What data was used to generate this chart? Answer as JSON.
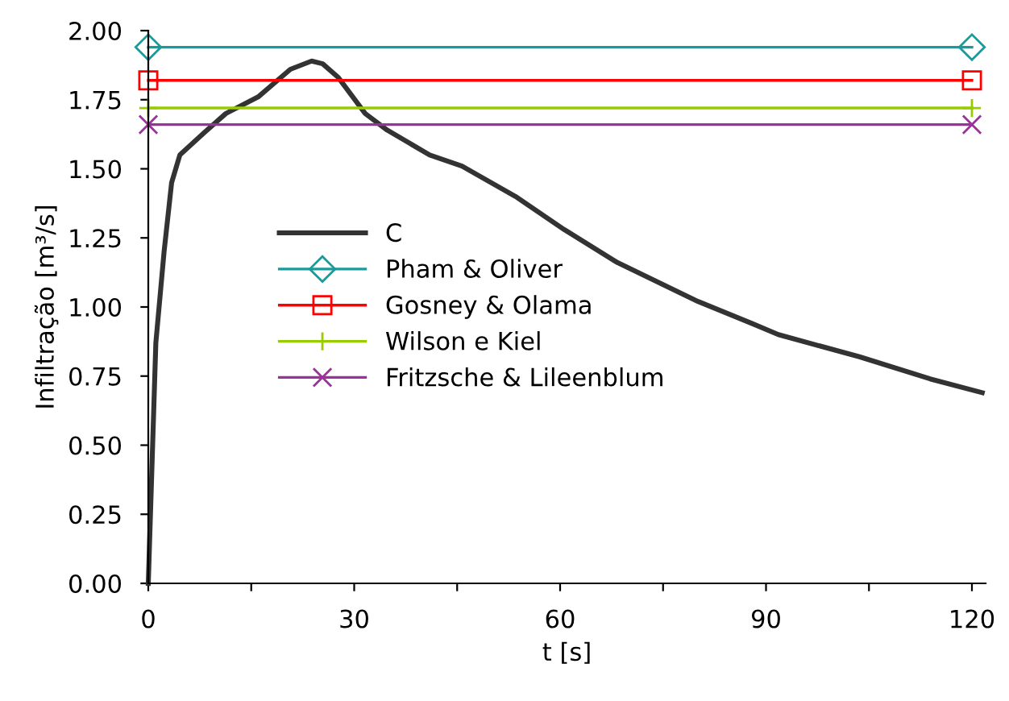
{
  "chart_data": {
    "type": "line",
    "xlabel": "t [s]",
    "ylabel": "Infiltração [m³/s]",
    "xlim": [
      0,
      122
    ],
    "ylim": [
      0,
      2.0
    ],
    "xticks": [
      0,
      {
        "value": 15,
        "label": null
      },
      30,
      {
        "value": 45,
        "label": null
      },
      60,
      {
        "value": 75,
        "label": null
      },
      90,
      {
        "value": 105,
        "label": null
      },
      120
    ],
    "yticks": [
      {
        "value": 0,
        "label": "0.00"
      },
      {
        "value": 0.25,
        "label": "0.25"
      },
      {
        "value": 0.5,
        "label": "0.50"
      },
      {
        "value": 0.75,
        "label": "0.75"
      },
      {
        "value": 1.0,
        "label": "1.00"
      },
      {
        "value": 1.25,
        "label": "1.25"
      },
      {
        "value": 1.5,
        "label": "1.50"
      },
      {
        "value": 1.75,
        "label": "1.75"
      },
      {
        "value": 2.0,
        "label": "2.00"
      }
    ],
    "grid": false,
    "legend": "center left",
    "series": [
      {
        "name": "C",
        "color": "#333333",
        "marker": "none",
        "x": [
          0,
          1.1,
          2.3,
          3.4,
          4.6,
          8.1,
          11.3,
          16,
          20.7,
          23.8,
          25.4,
          27.7,
          31.6,
          34.8,
          41,
          45.7,
          53.5,
          60.6,
          68.4,
          80.1,
          88,
          91.8,
          103.6,
          113.9,
          121.5
        ],
        "values": [
          0,
          0.87,
          1.2,
          1.45,
          1.55,
          1.63,
          1.7,
          1.76,
          1.86,
          1.89,
          1.88,
          1.83,
          1.7,
          1.64,
          1.55,
          1.51,
          1.4,
          1.28,
          1.16,
          1.02,
          0.94,
          0.9,
          0.82,
          0.74,
          0.69
        ]
      },
      {
        "name": "Pham & Oliver",
        "color": "#1a9a9a",
        "marker": "diamond",
        "x": [
          0,
          120
        ],
        "values": [
          1.94,
          1.94
        ]
      },
      {
        "name": "Gosney & Olama",
        "color": "#ff0000",
        "marker": "square",
        "x": [
          0,
          120
        ],
        "values": [
          1.82,
          1.82
        ]
      },
      {
        "name": "Wilson e Kiel",
        "color": "#99cc00",
        "marker": "cross",
        "x": [
          0,
          120
        ],
        "values": [
          1.72,
          1.72
        ]
      },
      {
        "name": "Fritzsche & Lileenblum",
        "color": "#993399",
        "marker": "x",
        "x": [
          0,
          120
        ],
        "values": [
          1.66,
          1.66
        ]
      }
    ]
  }
}
